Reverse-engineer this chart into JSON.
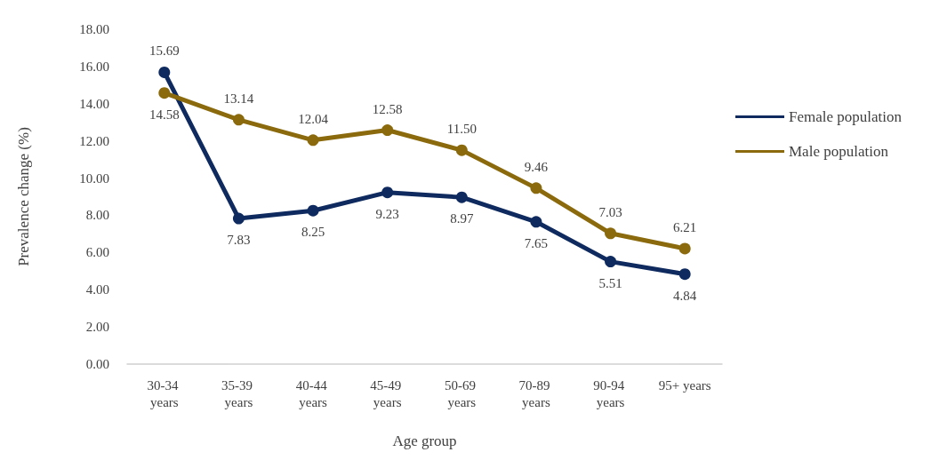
{
  "chart_data": {
    "type": "line",
    "xlabel": "Age group",
    "ylabel": "Prevalence change (%)",
    "categories": [
      "30-34 years",
      "35-39 years",
      "40-44 years",
      "45-49 years",
      "50-69 years",
      "70-89 years",
      "90-94 years",
      "95+ years"
    ],
    "series": [
      {
        "name": "Female population",
        "color": "#0e2a5e",
        "values": [
          15.69,
          7.83,
          8.25,
          9.23,
          8.97,
          7.65,
          5.51,
          4.84
        ],
        "value_labels": [
          "15.69",
          "7.83",
          "8.25",
          "9.23",
          "8.97",
          "7.65",
          "5.51",
          "4.84"
        ]
      },
      {
        "name": "Male population",
        "color": "#8a6a0c",
        "values": [
          14.58,
          13.14,
          12.04,
          12.58,
          11.5,
          9.46,
          7.03,
          6.21
        ],
        "value_labels": [
          "14.58",
          "13.14",
          "12.04",
          "12.58",
          "11.50",
          "9.46",
          "7.03",
          "6.21"
        ]
      }
    ],
    "ylim": [
      0,
      18
    ],
    "yticks": [
      {
        "value": 0,
        "label": "0.00"
      },
      {
        "value": 2,
        "label": "2.00"
      },
      {
        "value": 4,
        "label": "4.00"
      },
      {
        "value": 6,
        "label": "6.00"
      },
      {
        "value": 8,
        "label": "8.00"
      },
      {
        "value": 10,
        "label": "10.00"
      },
      {
        "value": 12,
        "label": "12.00"
      },
      {
        "value": 14,
        "label": "14.00"
      },
      {
        "value": 16,
        "label": "16.00"
      },
      {
        "value": 18,
        "label": "18.00"
      }
    ],
    "grid": false,
    "legend": "right",
    "marker": "circle",
    "line_style": "solid"
  }
}
